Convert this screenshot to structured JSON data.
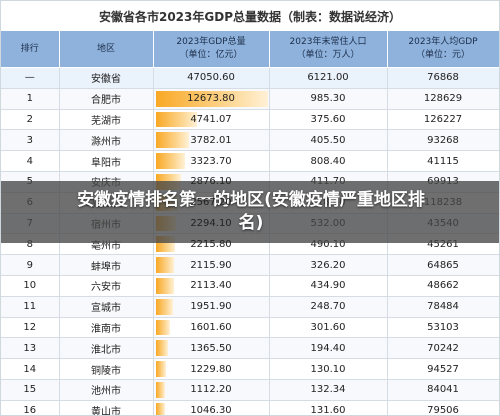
{
  "table_title": "安徽省各市2023年GDP总量数据（制表：数据说经济）",
  "headers": {
    "rank": "排行",
    "region": "地区",
    "gdp": "2023年GDP总量\n（单位：亿元）",
    "population": "2023年末常住人口\n（单位：万人）",
    "per_capita": "2023年人均GDP\n（单位：元）"
  },
  "total_row": {
    "rank": "—",
    "region": "安徽省",
    "gdp": "47050.60",
    "population": "6121.00",
    "per_capita": "76868",
    "gdp_value": 47050.6
  },
  "rows": [
    {
      "rank": "1",
      "region": "合肥市",
      "gdp": "12673.80",
      "population": "985.30",
      "per_capita": "128629",
      "gdp_value": 12673.8
    },
    {
      "rank": "2",
      "region": "芜湖市",
      "gdp": "4741.07",
      "population": "375.60",
      "per_capita": "126227",
      "gdp_value": 4741.07
    },
    {
      "rank": "3",
      "region": "滁州市",
      "gdp": "3782.01",
      "population": "405.50",
      "per_capita": "93268",
      "gdp_value": 3782.01
    },
    {
      "rank": "4",
      "region": "阜阳市",
      "gdp": "3323.70",
      "population": "808.40",
      "per_capita": "41115",
      "gdp_value": 3323.7
    },
    {
      "rank": "5",
      "region": "安庆市",
      "gdp": "2876.10",
      "population": "411.70",
      "per_capita": "69913",
      "gdp_value": 2876.1
    },
    {
      "rank": "6",
      "region": "马鞍山市",
      "gdp": "2567.20",
      "population": "218.60",
      "per_capita": "118238",
      "gdp_value": 2567.2
    },
    {
      "rank": "7",
      "region": "宿州市",
      "gdp": "2294.10",
      "population": "532.00",
      "per_capita": "43540",
      "gdp_value": 2294.1
    },
    {
      "rank": "8",
      "region": "亳州市",
      "gdp": "2215.80",
      "population": "490.10",
      "per_capita": "45261",
      "gdp_value": 2215.8
    },
    {
      "rank": "9",
      "region": "蚌埠市",
      "gdp": "2115.90",
      "population": "326.20",
      "per_capita": "64865",
      "gdp_value": 2115.9
    },
    {
      "rank": "10",
      "region": "六安市",
      "gdp": "2113.40",
      "population": "434.90",
      "per_capita": "48662",
      "gdp_value": 2113.4
    },
    {
      "rank": "11",
      "region": "宣城市",
      "gdp": "1951.90",
      "population": "248.70",
      "per_capita": "78484",
      "gdp_value": 1951.9
    },
    {
      "rank": "12",
      "region": "淮南市",
      "gdp": "1601.60",
      "population": "301.60",
      "per_capita": "53103",
      "gdp_value": 1601.6
    },
    {
      "rank": "13",
      "region": "淮北市",
      "gdp": "1365.50",
      "population": "194.40",
      "per_capita": "70242",
      "gdp_value": 1365.5
    },
    {
      "rank": "14",
      "region": "铜陵市",
      "gdp": "1229.80",
      "population": "130.10",
      "per_capita": "94527",
      "gdp_value": 1229.8
    },
    {
      "rank": "15",
      "region": "池州市",
      "gdp": "1112.20",
      "population": "132.34",
      "per_capita": "84041",
      "gdp_value": 1112.2
    },
    {
      "rank": "16",
      "region": "黄山市",
      "gdp": "1046.30",
      "population": "131.60",
      "per_capita": "79506",
      "gdp_value": 1046.3
    }
  ],
  "overlay_caption": "安徽疫情排名第一的地区(安徽疫情严重地区排名)",
  "colors": {
    "header_bg": "#8fb2dc",
    "bar_start": "#f9a825",
    "bar_end": "#fff1d6"
  }
}
